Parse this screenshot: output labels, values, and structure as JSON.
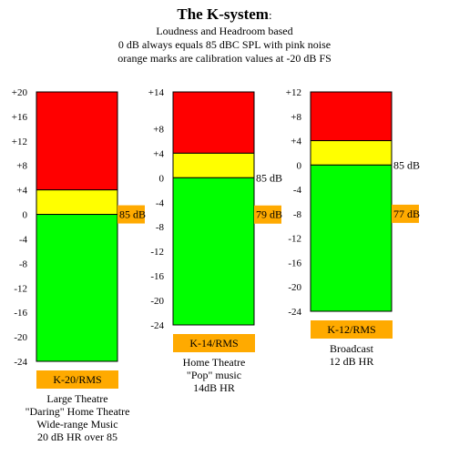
{
  "header": {
    "title": "The K-system",
    "title_suffix": ":",
    "subtitle_lines": [
      "Loudness and Headroom based",
      "0 dB always equals 85 dBC SPL with pink noise",
      "orange marks are calibration values at -20 dB FS"
    ]
  },
  "colors": {
    "red": "#ff0000",
    "yellow": "#ffff00",
    "green": "#00ff00",
    "orange": "#ffaa00",
    "outline": "#000000"
  },
  "meters": [
    {
      "id": "k20",
      "name": "K-20/RMS",
      "scale_max": 20,
      "scale_min": -24,
      "ticks": [
        {
          "value": 20,
          "label": "+20"
        },
        {
          "value": 16,
          "label": "+16"
        },
        {
          "value": 12,
          "label": "+12"
        },
        {
          "value": 8,
          "label": "+8"
        },
        {
          "value": 4,
          "label": "+4"
        },
        {
          "value": 0,
          "label": "0"
        },
        {
          "value": -4,
          "label": "-4"
        },
        {
          "value": -8,
          "label": "-8"
        },
        {
          "value": -12,
          "label": "-12"
        },
        {
          "value": -16,
          "label": "-16"
        },
        {
          "value": -20,
          "label": "-20"
        },
        {
          "value": -24,
          "label": "-24"
        }
      ],
      "zones": [
        {
          "color": "red",
          "from": 4,
          "to": 20
        },
        {
          "color": "yellow",
          "from": 0,
          "to": 4
        },
        {
          "color": "green",
          "from": -24,
          "to": 0
        }
      ],
      "spl_marker": {
        "value": 0,
        "label": "85 dB",
        "orange": true
      },
      "cal_marker": null,
      "description": [
        "Large Theatre",
        "\"Daring\" Home Theatre",
        "Wide-range Music",
        "20 dB HR over 85"
      ]
    },
    {
      "id": "k14",
      "name": "K-14/RMS",
      "scale_max": 14,
      "scale_min": -24,
      "ticks": [
        {
          "value": 14,
          "label": "+14"
        },
        {
          "value": 8,
          "label": "+8"
        },
        {
          "value": 4,
          "label": "+4"
        },
        {
          "value": 0,
          "label": "0"
        },
        {
          "value": -4,
          "label": "-4"
        },
        {
          "value": -8,
          "label": "-8"
        },
        {
          "value": -12,
          "label": "-12"
        },
        {
          "value": -16,
          "label": "-16"
        },
        {
          "value": -20,
          "label": "-20"
        },
        {
          "value": -24,
          "label": "-24"
        }
      ],
      "zones": [
        {
          "color": "red",
          "from": 4,
          "to": 14
        },
        {
          "color": "yellow",
          "from": 0,
          "to": 4
        },
        {
          "color": "green",
          "from": -24,
          "to": 0
        }
      ],
      "spl_marker": {
        "value": 0,
        "label": "85 dB",
        "orange": false
      },
      "cal_marker": {
        "value": -6,
        "label": "79 dB"
      },
      "description": [
        "Home Theatre",
        "\"Pop\" music",
        "14dB HR"
      ]
    },
    {
      "id": "k12",
      "name": "K-12/RMS",
      "scale_max": 12,
      "scale_min": -24,
      "ticks": [
        {
          "value": 12,
          "label": "+12"
        },
        {
          "value": 8,
          "label": "+8"
        },
        {
          "value": 4,
          "label": "+4"
        },
        {
          "value": 0,
          "label": "0"
        },
        {
          "value": -4,
          "label": "-4"
        },
        {
          "value": -8,
          "label": "-8"
        },
        {
          "value": -12,
          "label": "-12"
        },
        {
          "value": -16,
          "label": "-16"
        },
        {
          "value": -20,
          "label": "-20"
        },
        {
          "value": -24,
          "label": "-24"
        }
      ],
      "zones": [
        {
          "color": "red",
          "from": 4,
          "to": 12
        },
        {
          "color": "yellow",
          "from": 0,
          "to": 4
        },
        {
          "color": "green",
          "from": -24,
          "to": 0
        }
      ],
      "spl_marker": {
        "value": 0,
        "label": "85 dB",
        "orange": false
      },
      "cal_marker": {
        "value": -8,
        "label": "77 dB"
      },
      "description": [
        "Broadcast",
        "12 dB HR"
      ]
    }
  ]
}
